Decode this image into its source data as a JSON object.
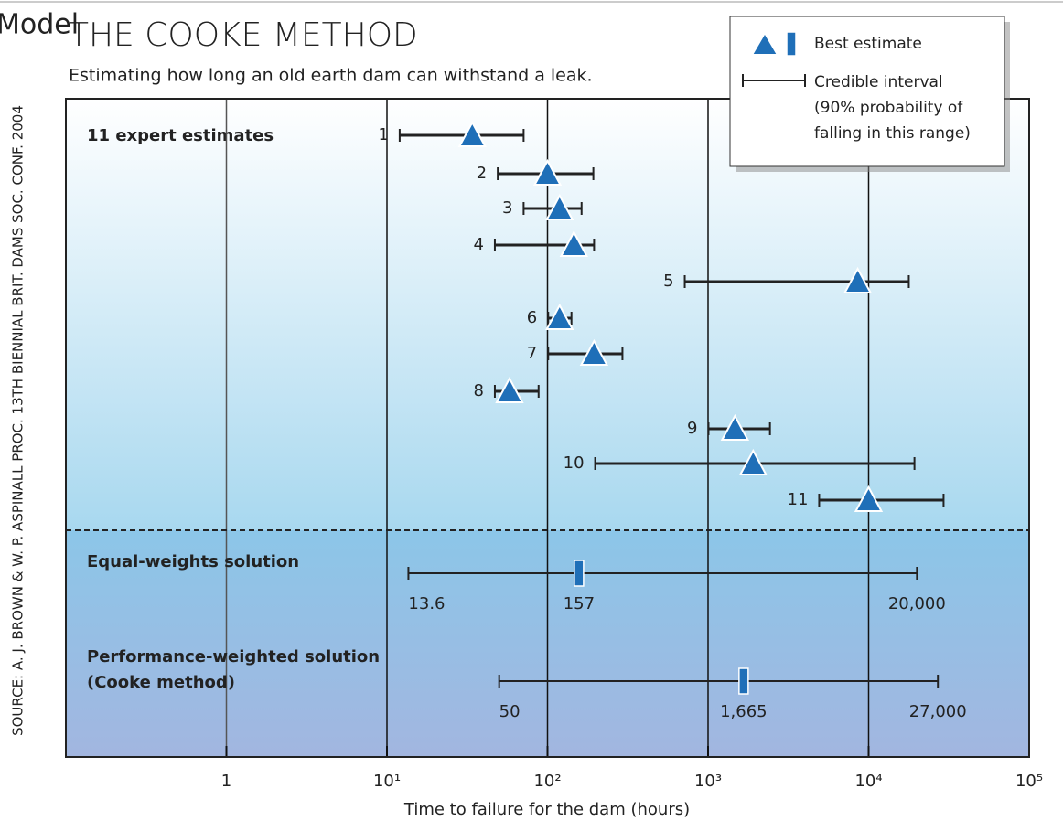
{
  "chart_data": {
    "type": "interval",
    "title": "THE COOKE METHOD",
    "subtitle": "Estimating how long an old earth dam can withstand a leak.",
    "annotations": [
      "Model"
    ],
    "source": "SOURCE: A. J. BROWN & W. P. ASPINALL PROC. 13TH BIENNIAL BRIT. DAMS SOC. CONF. 2004",
    "x_label": "Time to failure for the dam (hours)",
    "log_x": true,
    "xlim": [
      0.1,
      100000
    ],
    "xticks": [
      1,
      {
        "value": 10,
        "label": "10¹"
      },
      {
        "value": 100,
        "label": "10²"
      },
      {
        "value": 1000,
        "label": "10³"
      },
      {
        "value": 10000,
        "label": "10⁴"
      },
      {
        "value": 100000,
        "label": "10⁵"
      }
    ],
    "color": "#1f6fb8",
    "group_label": "11 expert estimates",
    "categories": [
      "1",
      "2",
      "3",
      "4",
      "5",
      "6",
      "7",
      "8",
      "9",
      "10",
      "11"
    ],
    "estimates": [
      34,
      100,
      119,
      146,
      8550,
      119,
      195,
      58,
      1470,
      1910,
      10000
    ],
    "lows": [
      12,
      49,
      71,
      47,
      716,
      101,
      101,
      47,
      1006,
      198,
      4920
    ],
    "highs": [
      71,
      193,
      163,
      195,
      17800,
      141,
      293,
      88,
      2430,
      19300,
      29300
    ],
    "solutions": [
      {
        "name": [
          "Equal-weights solution"
        ],
        "values": [
          13.6,
          157,
          20000
        ],
        "value_labels": [
          "13.6",
          "157",
          "20,000"
        ]
      },
      {
        "name": [
          "Performance-weighted solution",
          "(Cooke method)"
        ],
        "values": [
          50,
          1665,
          27000
        ],
        "value_labels": [
          "50",
          "1,665",
          "27,000"
        ]
      }
    ],
    "legend": {
      "estimate": "Best estimate",
      "interval": [
        "Credible interval",
        "(90% probability of",
        "falling in this range)"
      ]
    }
  }
}
